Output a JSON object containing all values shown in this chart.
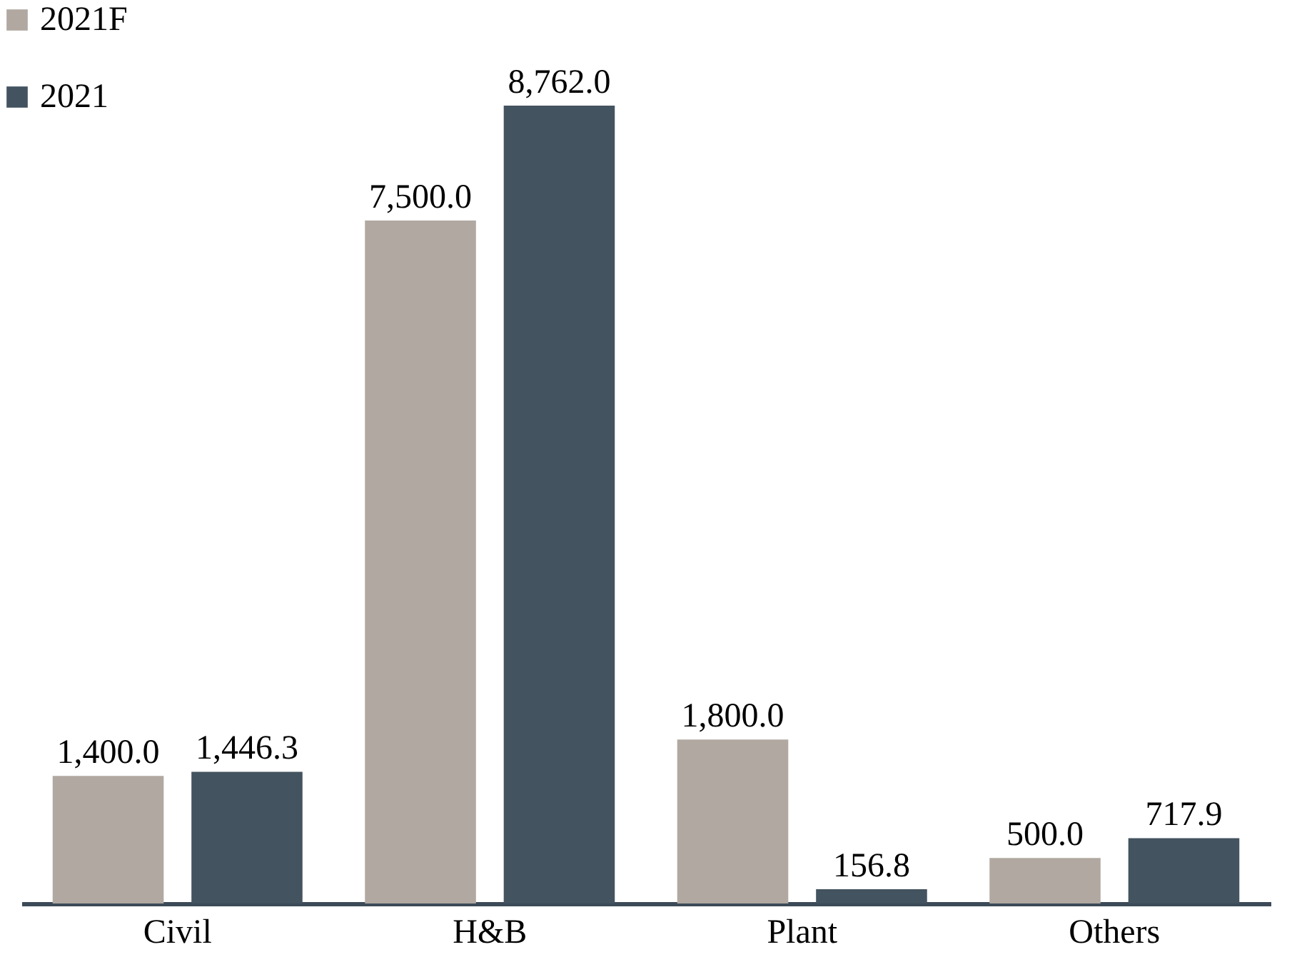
{
  "chart_data": {
    "type": "bar",
    "categories": [
      "Civil",
      "H&B",
      "Plant",
      "Others"
    ],
    "series": [
      {
        "name": "2021F",
        "color": "#b0a8a1",
        "values": [
          1400.0,
          7500.0,
          1800.0,
          500.0
        ],
        "value_labels": [
          "1,400.0",
          "7,500.0",
          "1,800.0",
          "500.0"
        ]
      },
      {
        "name": "2021",
        "color": "#43535f",
        "values": [
          1446.3,
          8762.0,
          156.8,
          717.9
        ],
        "value_labels": [
          "1,446.3",
          "8,762.0",
          "156.8",
          "717.9"
        ]
      }
    ],
    "legend": "top left"
  }
}
